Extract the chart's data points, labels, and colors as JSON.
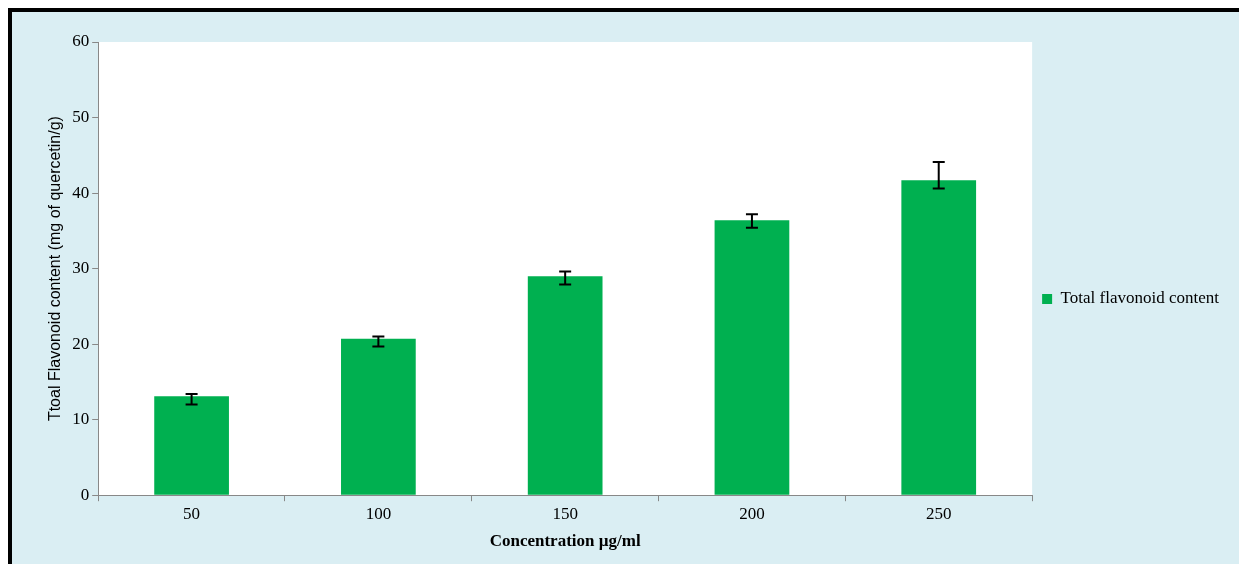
{
  "chart_data": {
    "type": "bar",
    "xlabel": "Concentration µg/ml",
    "ylabel": "Ttoal Flavonoid content (mg of quercetin/g)",
    "categories": [
      "50",
      "100",
      "150",
      "200",
      "250"
    ],
    "series": [
      {
        "name": "Total flavonoid content",
        "color": "#00b050",
        "values": [
          13.1,
          20.7,
          29.0,
          36.4,
          41.7
        ],
        "errors": [
          [
            12.0,
            13.4
          ],
          [
            19.7,
            21.0
          ],
          [
            27.9,
            29.6
          ],
          [
            35.4,
            37.2
          ],
          [
            40.6,
            44.1
          ]
        ]
      }
    ],
    "ylim": [
      0,
      60
    ],
    "yticks": [
      0,
      10,
      20,
      30,
      40,
      50,
      60
    ],
    "grid": false,
    "legend": "right"
  }
}
